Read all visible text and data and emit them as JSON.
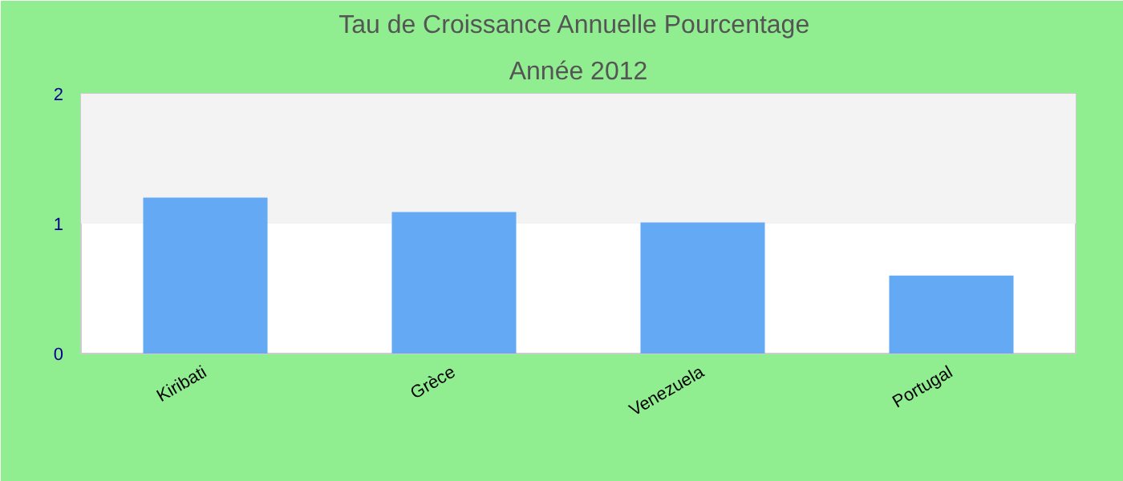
{
  "chart_data": {
    "type": "bar",
    "title": "Tau de Croissance Annuelle  Pourcentage",
    "subtitle": "Année 2012",
    "categories": [
      "Kiribati",
      "Grèce",
      "Venezuela",
      "Portugal"
    ],
    "values": [
      1.2,
      1.09,
      1.01,
      0.6
    ],
    "color": "#63a9f4",
    "ylim": [
      0,
      2
    ],
    "yticks": [
      0,
      1,
      2
    ],
    "grid": false,
    "bands": [
      {
        "axis": "y",
        "from": 1,
        "to": 2,
        "color": "#f3f3f3"
      }
    ]
  }
}
